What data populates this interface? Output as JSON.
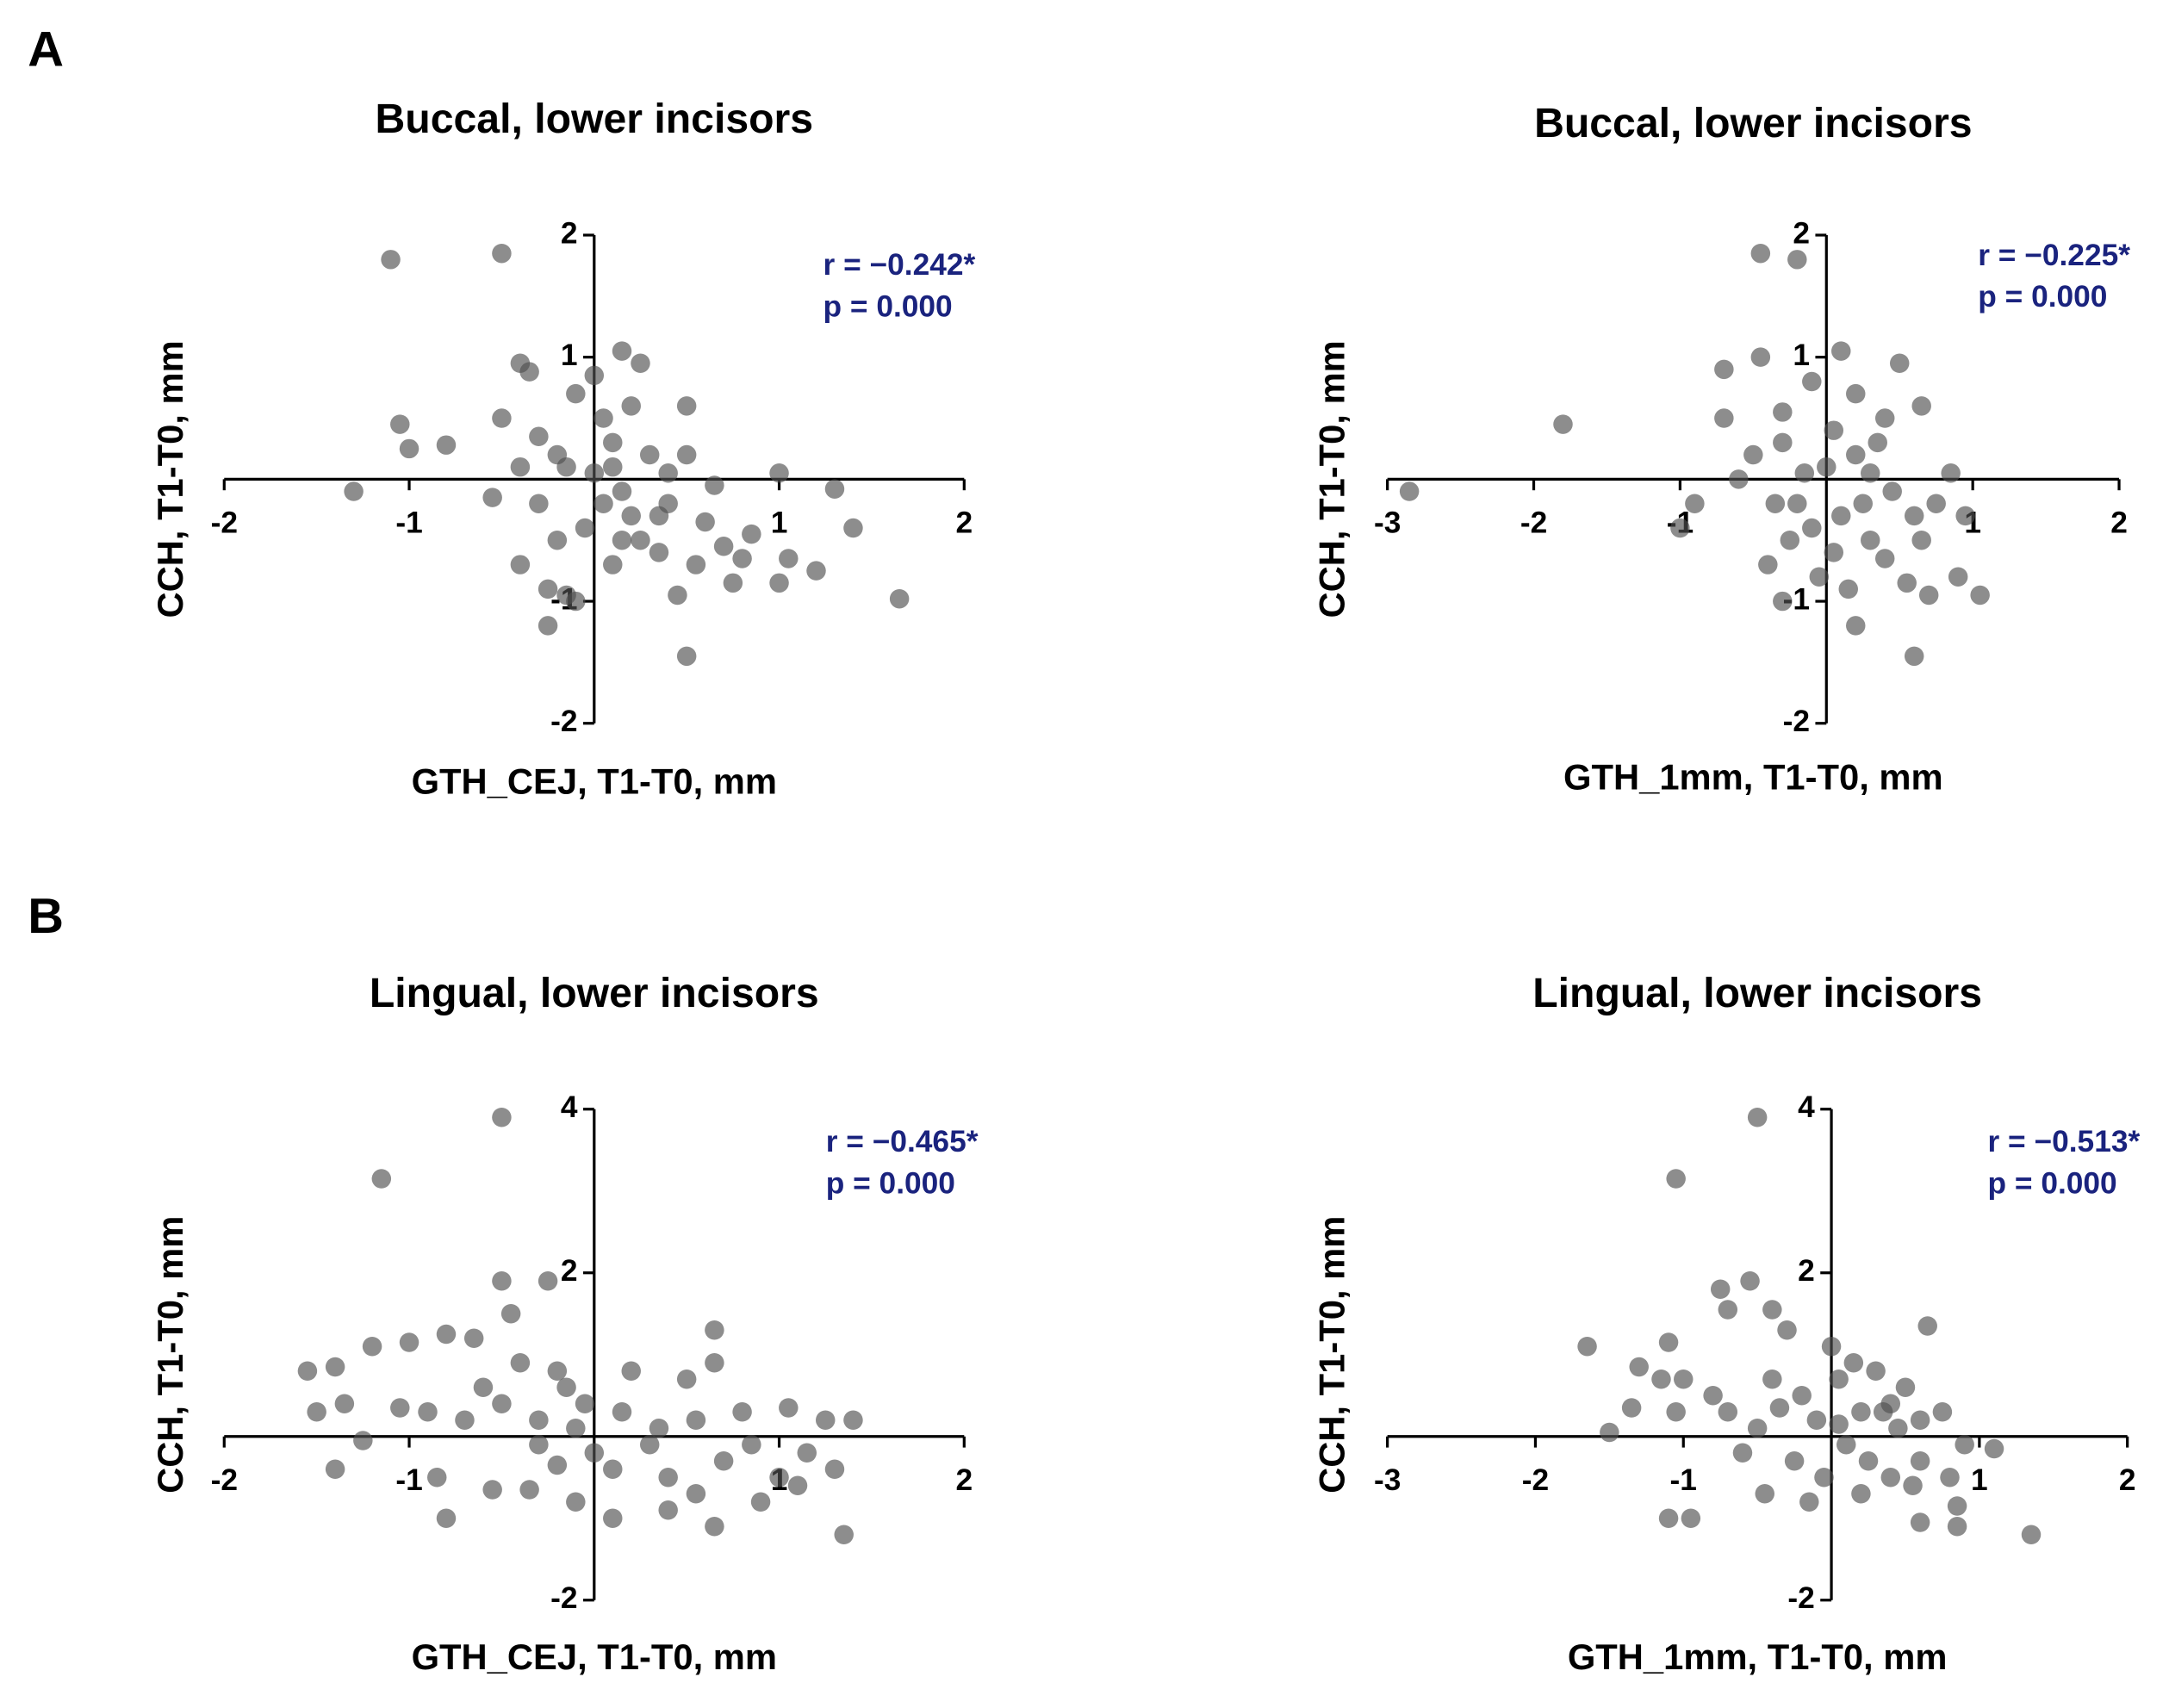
{
  "panel_labels": [
    "A",
    "B"
  ],
  "chart_data": [
    {
      "type": "scatter",
      "title": "Buccal, lower incisors",
      "xlabel": "GTH_CEJ, T1-T0, mm",
      "ylabel": "CCH, T1-T0, mm",
      "annotations": [
        "r = −0.242*",
        "p = 0.000"
      ],
      "annotation_color": "#1a237e",
      "color": "#505050",
      "xlim": [
        -2,
        2
      ],
      "ylim": [
        -2,
        2
      ],
      "xticks": [
        -2,
        -1,
        1,
        2
      ],
      "yticks": [
        -2,
        -1,
        1,
        2
      ],
      "x": [
        -1.1,
        -0.5,
        -1.3,
        -1.05,
        -1,
        -0.8,
        1.65,
        1.4,
        1.3,
        0.5,
        -0.25,
        1.2,
        1,
        0.8,
        1,
        -0.4,
        -0.35,
        0.15,
        0.25,
        0.5,
        0.4,
        0.65,
        0.7,
        0.85,
        1.05,
        0.75,
        0.6,
        0.45,
        0.35,
        -0.1,
        -0.15,
        -0.4,
        -0.5,
        -0.55,
        -0.3,
        -0.2,
        -0.1,
        0,
        0.05,
        0.1,
        0.15,
        0.2,
        0.25,
        0.3,
        0.05,
        -0.05,
        -0.2,
        -0.3,
        0.1,
        0.2,
        -0.15,
        0.35,
        0.5,
        0.4,
        -0.4,
        0,
        0.1,
        -0.25,
        0.55,
        0.15
      ],
      "y": [
        1.8,
        1.85,
        -0.1,
        0.45,
        0.25,
        0.28,
        -0.98,
        -0.4,
        -0.08,
        -1.45,
        -1.2,
        -0.75,
        -0.85,
        -0.65,
        0.05,
        0.95,
        0.88,
        1.05,
        0.95,
        0.6,
        0.05,
        -0.05,
        -0.55,
        -0.45,
        -0.65,
        -0.85,
        -0.35,
        -0.95,
        -0.6,
        -1,
        -0.95,
        -0.7,
        0.5,
        -0.15,
        0.35,
        0.2,
        0.7,
        0.85,
        0.5,
        0.3,
        -0.1,
        -0.3,
        -0.5,
        0.2,
        -0.2,
        -0.4,
        -0.5,
        -0.2,
        -0.7,
        0.6,
        0.1,
        -0.3,
        0.2,
        -0.2,
        0.1,
        0.05,
        0.1,
        -0.9,
        -0.7,
        -0.5
      ]
    },
    {
      "type": "scatter",
      "title": "Buccal, lower incisors",
      "xlabel": "GTH_1mm, T1-T0, mm",
      "ylabel": "CCH, T1-T0, mm",
      "annotations": [
        "r = −0.225*",
        "p = 0.000"
      ],
      "annotation_color": "#1a237e",
      "color": "#505050",
      "xlim": [
        -3,
        2
      ],
      "ylim": [
        -2,
        2
      ],
      "xticks": [
        -3,
        -2,
        -1,
        1,
        2
      ],
      "yticks": [
        -2,
        -1,
        1,
        2
      ],
      "x": [
        -2.85,
        -1.8,
        -1,
        -0.9,
        -0.7,
        -0.6,
        -0.45,
        -0.45,
        -0.2,
        -0.7,
        0.6,
        1.05,
        0.9,
        0.85,
        0.65,
        0.6,
        0.5,
        0.75,
        0.4,
        0.55,
        0.2,
        -0.3,
        -0.4,
        -0.1,
        0.1,
        0.2,
        -0.3,
        -0.2,
        -0.1,
        0,
        0.1,
        0.2,
        0.3,
        0.35,
        -0.3,
        -0.05,
        0.15,
        0.45,
        -0.25,
        0.05,
        0.25,
        -0.15,
        0.4,
        0.05,
        -0.35,
        0.3,
        0.65,
        0.7,
        0.95,
        -0.5
      ],
      "y": [
        -0.1,
        0.45,
        -0.4,
        -0.2,
        0.9,
        0,
        1,
        1.85,
        1.8,
        0.5,
        -1.45,
        -0.95,
        -0.8,
        0.05,
        0.6,
        -0.3,
        0.95,
        -0.2,
        -0.65,
        -0.85,
        -1.2,
        -1,
        -0.7,
        0.8,
        1.05,
        0.7,
        0.3,
        -0.2,
        -0.4,
        0.1,
        -0.3,
        0.2,
        -0.5,
        0.3,
        0.55,
        -0.8,
        -0.9,
        -0.1,
        -0.5,
        0.4,
        -0.2,
        0.05,
        0.5,
        -0.6,
        -0.2,
        0.05,
        -0.5,
        -0.95,
        -0.3,
        0.2
      ]
    },
    {
      "type": "scatter",
      "title": "Lingual, lower incisors",
      "xlabel": "GTH_CEJ, T1-T0, mm",
      "ylabel": "CCH, T1-T0, mm",
      "annotations": [
        "r = −0.465*",
        "p = 0.000"
      ],
      "annotation_color": "#1a237e",
      "color": "#505050",
      "xlim": [
        -2,
        2
      ],
      "ylim": [
        -2,
        4
      ],
      "xticks": [
        -2,
        -1,
        1,
        2
      ],
      "yticks": [
        -2,
        2,
        4
      ],
      "x": [
        -0.5,
        -1.15,
        -0.5,
        -0.25,
        -0.45,
        -1.55,
        -1.4,
        -1.2,
        -1,
        -0.8,
        -0.65,
        -1.5,
        -1.35,
        -1.4,
        -1.25,
        -0.85,
        -0.8,
        -0.55,
        -0.35,
        -0.2,
        -1.05,
        -0.9,
        -0.7,
        -0.5,
        -0.3,
        -0.15,
        -0.1,
        0,
        0.15,
        0.3,
        0.2,
        0.5,
        0.65,
        0.65,
        0.4,
        0.55,
        0.7,
        0.85,
        1,
        1.1,
        1.05,
        1.25,
        1.3,
        1.35,
        1.4,
        0.65,
        0.4,
        0.1,
        -0.1,
        0.9,
        -0.6,
        -0.4,
        -0.2,
        0.35,
        0.8,
        1.15,
        -0.05,
        0.1,
        -0.3,
        0.55
      ],
      "y": [
        3.9,
        3.15,
        1.9,
        1.9,
        1.5,
        0.8,
        0.85,
        1.1,
        1.15,
        1.25,
        1.2,
        0.3,
        0.4,
        -0.4,
        -0.05,
        -0.5,
        -1,
        -0.65,
        -0.65,
        -0.35,
        0.35,
        0.3,
        0.2,
        0.4,
        0.2,
        0.6,
        0.1,
        -0.2,
        0.3,
        -0.1,
        0.8,
        0.7,
        0.9,
        1.3,
        -0.5,
        -0.7,
        -0.3,
        -0.1,
        -0.5,
        -0.6,
        0.35,
        0.2,
        -0.4,
        -1.2,
        0.2,
        -1.1,
        -0.9,
        -1,
        -0.8,
        -0.8,
        0.6,
        0.9,
        0.8,
        0.1,
        0.3,
        -0.2,
        0.4,
        -0.4,
        -0.1,
        0.2
      ]
    },
    {
      "type": "scatter",
      "title": "Lingual, lower incisors",
      "xlabel": "GTH_1mm, T1-T0, mm",
      "ylabel": "CCH, T1-T0, mm",
      "annotations": [
        "r = −0.513*",
        "p = 0.000"
      ],
      "annotation_color": "#1a237e",
      "color": "#505050",
      "xlim": [
        -3,
        2
      ],
      "ylim": [
        -2,
        4
      ],
      "xticks": [
        -3,
        -2,
        -1,
        1,
        2
      ],
      "yticks": [
        -2,
        2,
        4
      ],
      "x": [
        -0.5,
        -1.05,
        -0.75,
        -0.55,
        -0.7,
        -0.4,
        -1.65,
        -1.1,
        -1.3,
        -1.15,
        -1,
        -1.5,
        -1.35,
        -1.05,
        -1.1,
        -0.95,
        -0.8,
        -0.7,
        -0.6,
        -0.45,
        -0.4,
        -0.3,
        -0.2,
        -0.1,
        0,
        0.05,
        0.1,
        0.2,
        0.25,
        0.3,
        0.4,
        0.45,
        0.5,
        0.6,
        0.6,
        0.65,
        0.75,
        0.8,
        0.85,
        0.9,
        0.85,
        1.1,
        1.35,
        0.6,
        0.2,
        -0.05,
        -0.25,
        -0.5,
        0.15,
        0.35,
        -0.15,
        0.55,
        0.05,
        0.4,
        -0.35
      ],
      "y": [
        3.9,
        3.15,
        1.8,
        1.9,
        1.55,
        1.55,
        1.1,
        1.15,
        0.85,
        0.7,
        0.7,
        0.05,
        0.35,
        0.3,
        -1,
        -1,
        0.5,
        0.3,
        -0.2,
        -0.7,
        0.7,
        1.3,
        0.5,
        0.2,
        1.1,
        0.7,
        -0.1,
        0.3,
        -0.3,
        0.8,
        -0.5,
        0.1,
        0.6,
        -0.3,
        0.2,
        1.35,
        0.3,
        -0.5,
        -0.85,
        -0.1,
        -1.1,
        -0.15,
        -1.2,
        -1.05,
        -0.7,
        -0.5,
        -0.3,
        0.1,
        0.9,
        0.3,
        -0.8,
        -0.6,
        0.15,
        0.4,
        0.35
      ]
    }
  ]
}
